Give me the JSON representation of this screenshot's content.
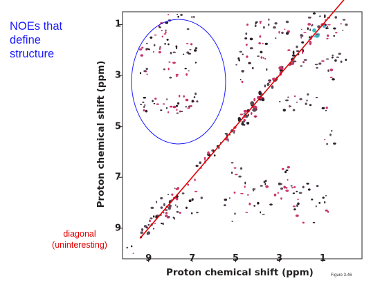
{
  "callout": {
    "lines": [
      "NOEs that",
      "define",
      "structure"
    ],
    "color": "#1a1aff",
    "ellipse_color": "#1a1aff"
  },
  "diagonal_note": {
    "lines": [
      "diagonal",
      "(uninteresting)"
    ],
    "color": "#e00000",
    "line_color": "#e00000"
  },
  "figure_number": "Figure 3.46",
  "chart_data": {
    "type": "scatter",
    "xlabel": "Proton chemical shift (ppm)",
    "ylabel": "Proton chemical shift (ppm)",
    "xlim": [
      10.2,
      -0.8
    ],
    "ylim": [
      0.5,
      10.2
    ],
    "x_ticks": [
      "9",
      "7",
      "5",
      "3",
      "1"
    ],
    "y_ticks": [
      "1",
      "3",
      "5",
      "7",
      "9"
    ],
    "grid": false,
    "diagonal": {
      "from": [
        9.4,
        9.4
      ],
      "to": [
        -0.7,
        -0.7
      ]
    },
    "peak_colors": [
      "#2b1f2a",
      "#c9356b",
      "#5a4a5a",
      "#3fb8c8"
    ],
    "peak_clusters": [
      {
        "cx": 8.4,
        "cy": 1.2,
        "w": 0.35,
        "h": 0.3,
        "n": 8
      },
      {
        "cx": 8.1,
        "cy": 2.0,
        "w": 1.3,
        "h": 0.25,
        "n": 22
      },
      {
        "cx": 8.0,
        "cy": 2.8,
        "w": 1.4,
        "h": 0.35,
        "n": 16
      },
      {
        "cx": 8.0,
        "cy": 3.9,
        "w": 1.4,
        "h": 0.25,
        "n": 14
      },
      {
        "cx": 8.2,
        "cy": 4.3,
        "w": 1.3,
        "h": 0.2,
        "n": 22
      },
      {
        "cx": 8.6,
        "cy": 1.6,
        "w": 0.5,
        "h": 0.6,
        "n": 8
      },
      {
        "cx": 7.5,
        "cy": 1.0,
        "w": 0.6,
        "h": 0.4,
        "n": 8
      },
      {
        "cx": 4.2,
        "cy": 1.3,
        "w": 0.5,
        "h": 0.5,
        "n": 12
      },
      {
        "cx": 3.0,
        "cy": 1.2,
        "w": 0.5,
        "h": 0.4,
        "n": 10
      },
      {
        "cx": 4.0,
        "cy": 2.2,
        "w": 0.6,
        "h": 0.6,
        "n": 14
      },
      {
        "cx": 2.2,
        "cy": 2.0,
        "w": 0.5,
        "h": 0.7,
        "n": 10
      },
      {
        "cx": 1.2,
        "cy": 1.0,
        "w": 0.9,
        "h": 0.6,
        "n": 26
      },
      {
        "cx": 0.5,
        "cy": 1.6,
        "w": 0.6,
        "h": 0.9,
        "n": 16
      },
      {
        "cx": 1.0,
        "cy": 2.8,
        "w": 0.5,
        "h": 0.5,
        "n": 8
      },
      {
        "cx": 2.5,
        "cy": 4.2,
        "w": 0.5,
        "h": 0.4,
        "n": 10
      },
      {
        "cx": 1.3,
        "cy": 4.0,
        "w": 0.5,
        "h": 0.5,
        "n": 8
      },
      {
        "cx": 4.4,
        "cy": 4.7,
        "w": 0.4,
        "h": 0.2,
        "n": 8
      },
      {
        "cx": 4.8,
        "cy": 3.5,
        "w": 0.2,
        "h": 1.5,
        "n": 10
      },
      {
        "cx": 4.2,
        "cy": 7.8,
        "w": 0.6,
        "h": 0.7,
        "n": 16
      },
      {
        "cx": 2.3,
        "cy": 8.0,
        "w": 0.6,
        "h": 0.8,
        "n": 18
      },
      {
        "cx": 1.2,
        "cy": 8.0,
        "w": 0.5,
        "h": 0.8,
        "n": 12
      },
      {
        "cx": 3.3,
        "cy": 7.7,
        "w": 0.4,
        "h": 0.5,
        "n": 8
      },
      {
        "cx": 7.6,
        "cy": 8.0,
        "w": 1.1,
        "h": 0.7,
        "n": 22
      },
      {
        "cx": 8.4,
        "cy": 8.6,
        "w": 0.5,
        "h": 0.4,
        "n": 8
      },
      {
        "cx": 5.3,
        "cy": 8.2,
        "w": 0.3,
        "h": 0.6,
        "n": 6
      },
      {
        "cx": 4.9,
        "cy": 6.7,
        "w": 0.3,
        "h": 0.3,
        "n": 6
      },
      {
        "cx": 2.8,
        "cy": 6.9,
        "w": 0.3,
        "h": 0.3,
        "n": 5
      },
      {
        "cx": 0.7,
        "cy": 5.4,
        "w": 0.3,
        "h": 0.3,
        "n": 5
      },
      {
        "cx": 9.8,
        "cy": 9.9,
        "w": 0.2,
        "h": 0.2,
        "n": 3
      }
    ]
  }
}
